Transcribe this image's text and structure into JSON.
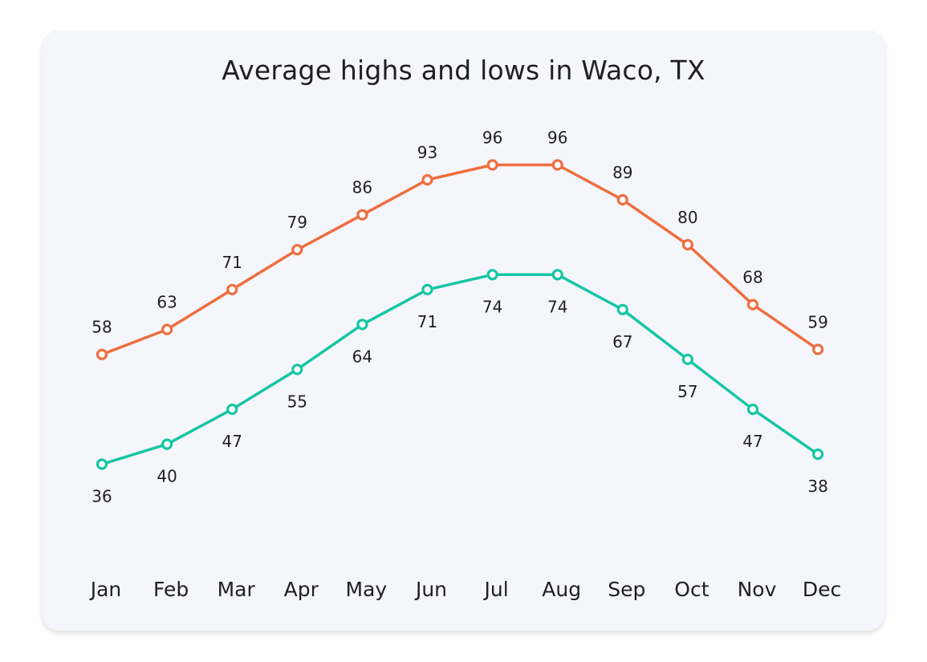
{
  "chart_data": {
    "type": "line",
    "title": "Average highs and lows in Waco, TX",
    "categories": [
      "Jan",
      "Feb",
      "Mar",
      "Apr",
      "May",
      "Jun",
      "Jul",
      "Aug",
      "Sep",
      "Oct",
      "Nov",
      "Dec"
    ],
    "series": [
      {
        "values": [
          58,
          63,
          71,
          79,
          86,
          93,
          96,
          96,
          89,
          80,
          68,
          59
        ],
        "color": "#ee6e3f",
        "label_position": "above"
      },
      {
        "values": [
          36,
          40,
          47,
          55,
          64,
          71,
          74,
          74,
          67,
          57,
          47,
          38
        ],
        "color": "#16c6a3",
        "label_position": "below"
      }
    ],
    "xlabel": "",
    "ylabel": "",
    "ylim": [
      25,
      110
    ],
    "grid": false,
    "legend": "none",
    "data_labels": true
  }
}
